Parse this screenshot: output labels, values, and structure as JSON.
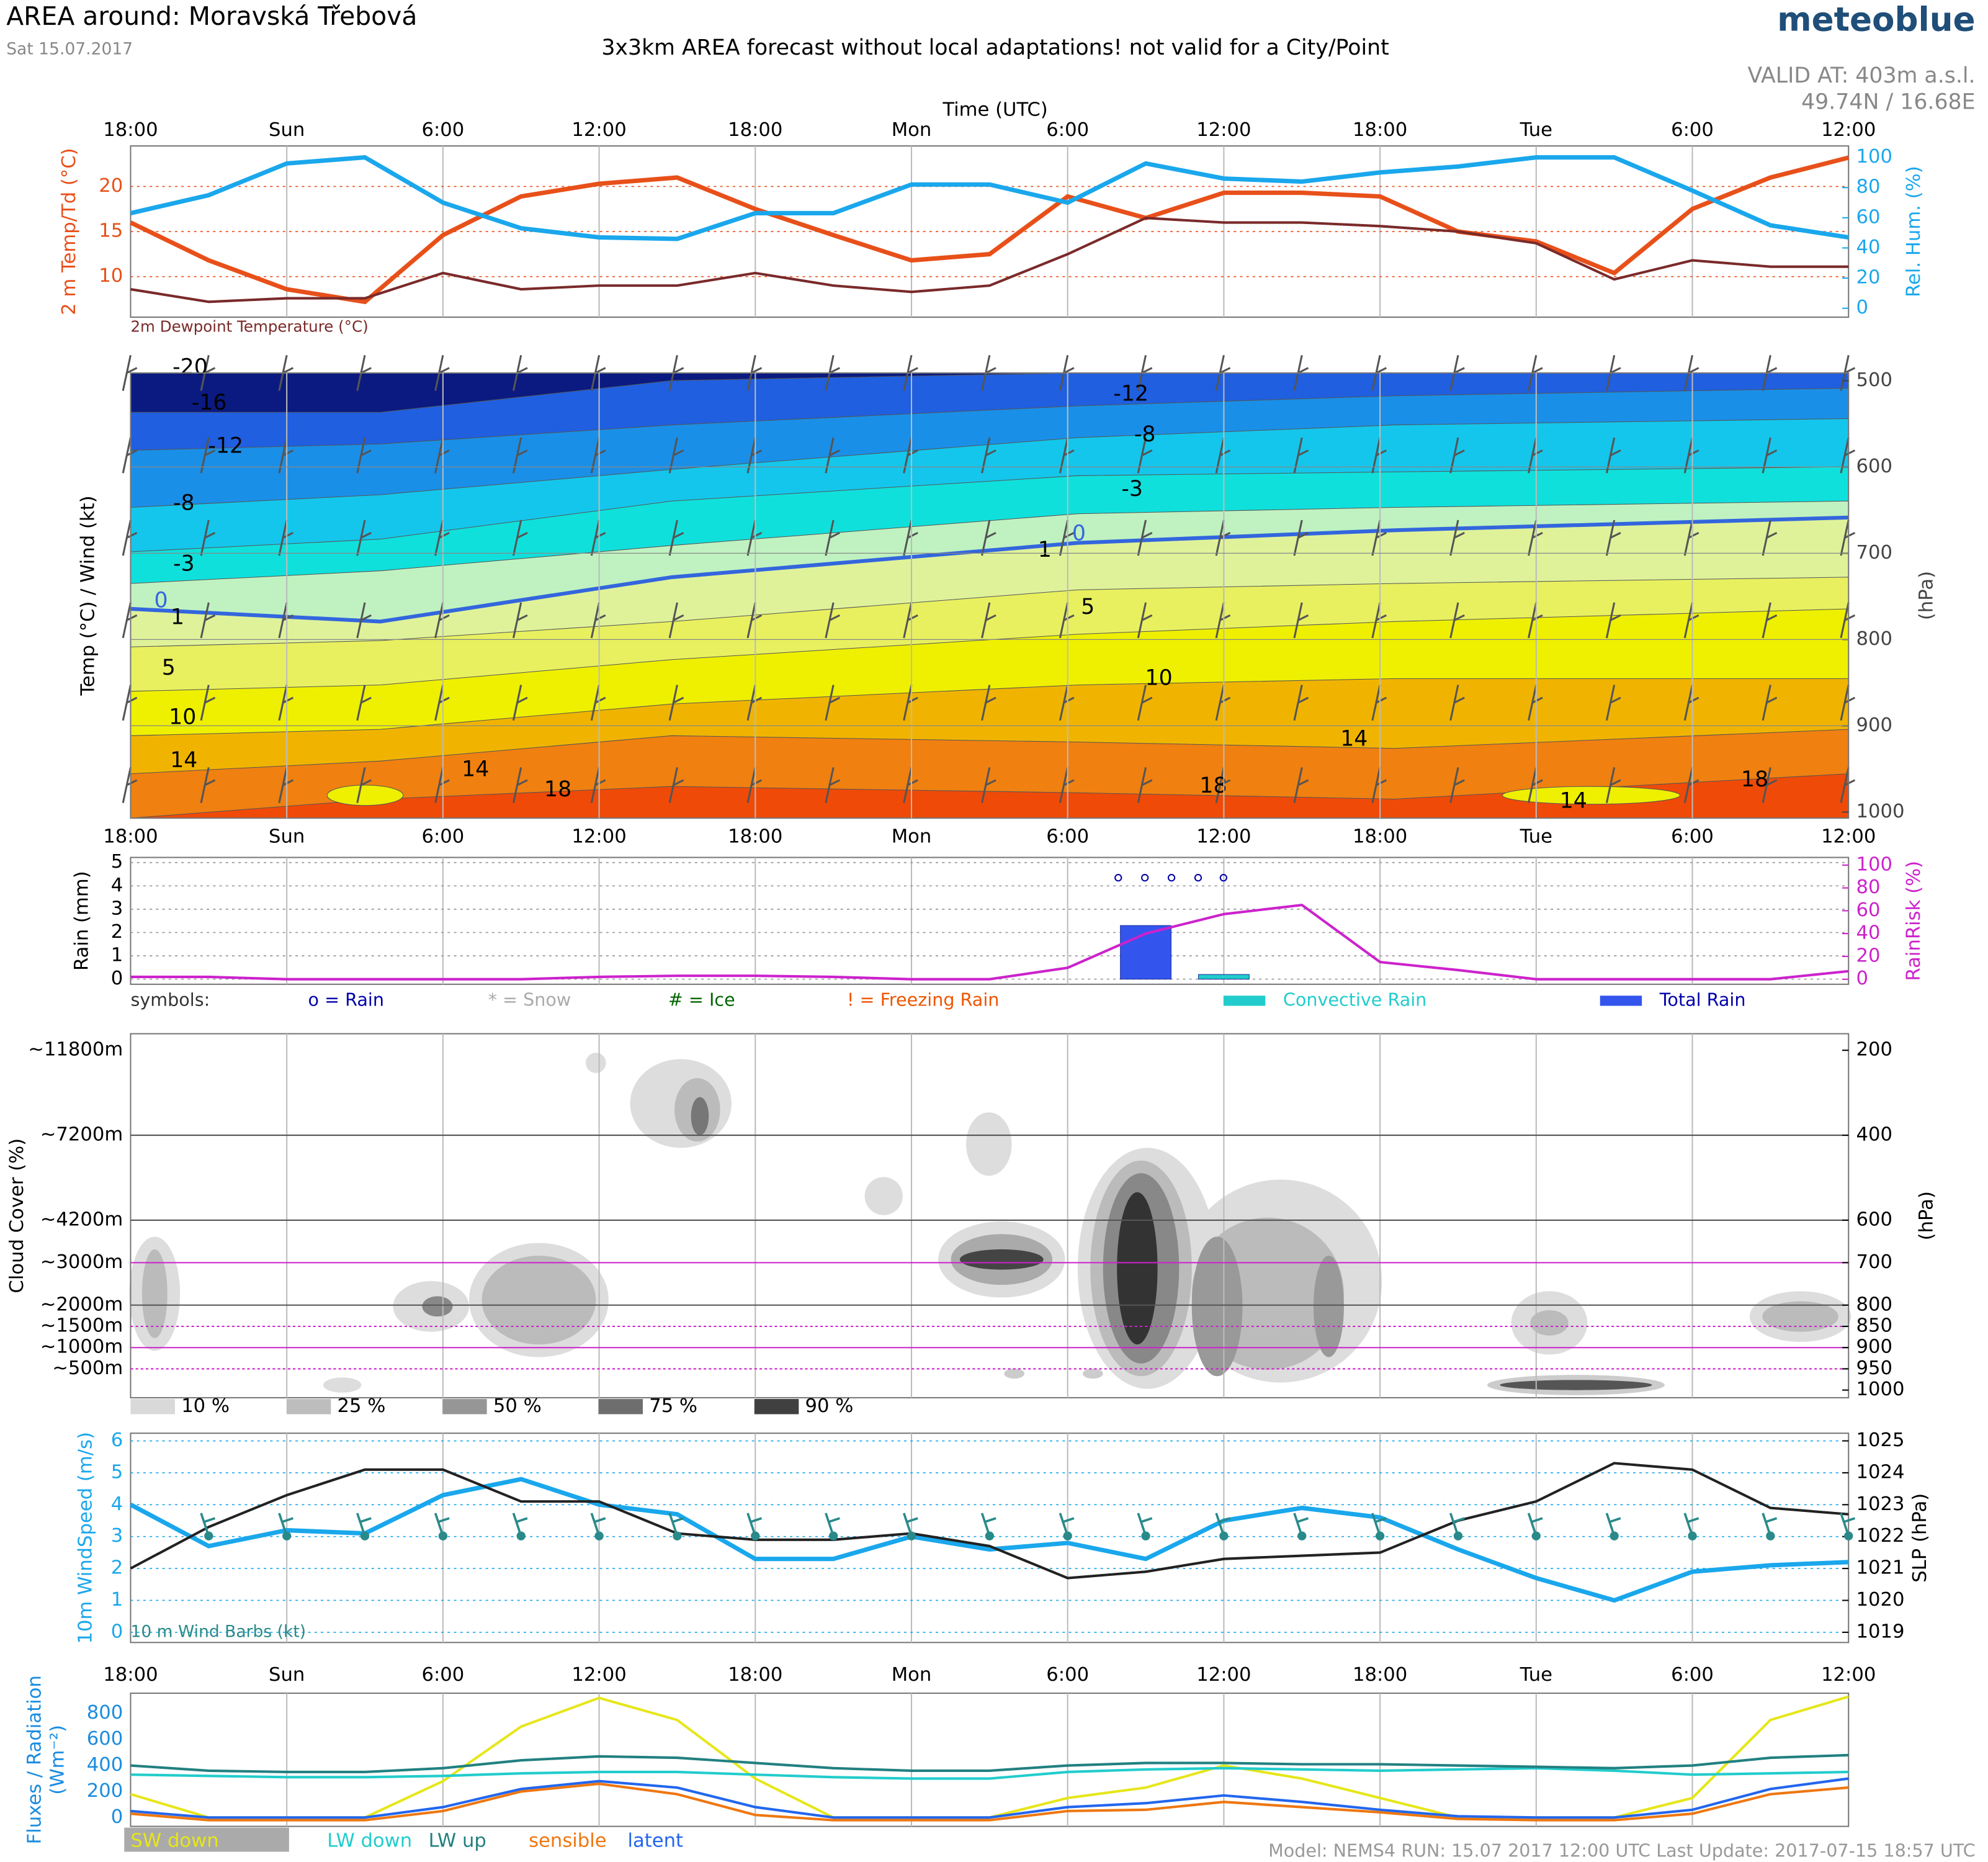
{
  "header": {
    "title": "AREA around: Moravská Třebová",
    "date": "Sat 15.07.2017",
    "subtitle": "3x3km AREA forecast without local adaptations! not valid for a City/Point",
    "brand": "meteoblue",
    "valid_at": "VALID AT: 403m a.s.l.",
    "coords": "49.74N / 16.68E",
    "time_axis": "Time (UTC)"
  },
  "footer": "Model: NEMS4    RUN: 15.07 2017 12:00 UTC    Last Update: 2017-07-15 18:57 UTC",
  "chart_data": [
    {
      "type": "line",
      "ylabel": "2 m Temp/Td (°C)",
      "y2label": "Rel. Hum. (%)",
      "categories": [
        "18:00",
        null,
        "Sun",
        null,
        "6:00",
        null,
        "12:00",
        null,
        "18:00",
        null,
        "Mon",
        null,
        "6:00",
        null,
        "12:00",
        null,
        "18:00",
        null,
        "Tue",
        null,
        "6:00",
        null,
        "12:00"
      ],
      "ylim": [
        5.5,
        24.5
      ],
      "yticks": [
        10,
        15,
        20
      ],
      "y2lim": [
        -5.9,
        107.6
      ],
      "y2ticks": [
        0,
        20,
        40,
        60,
        80,
        100
      ],
      "grid": true,
      "series": [
        {
          "color": "#e8501a",
          "values": [
            16,
            11.8,
            8.6,
            7.2,
            14.6,
            18.9,
            20.3,
            21,
            17.5,
            14.6,
            11.8,
            12.5,
            18.9,
            16.5,
            19.3,
            19.3,
            18.9,
            15,
            13.9,
            10.4,
            17.5,
            21,
            23.2
          ]
        },
        {
          "name": "2m Dewpoint Temperature (°C)",
          "color": "#7a2a2a",
          "values": [
            8.6,
            7.2,
            7.6,
            7.6,
            10.4,
            8.6,
            9,
            9,
            10.4,
            9,
            8.3,
            9,
            12.5,
            16.5,
            16,
            16,
            15.6,
            15,
            13.7,
            9.7,
            11.8,
            11.1,
            11.1
          ]
        },
        {
          "color": "#1aa7ec",
          "axis": "y2",
          "values": [
            63,
            75,
            96,
            100,
            70,
            53,
            47,
            46,
            63,
            63,
            82,
            82,
            70,
            96,
            86,
            84,
            90,
            94,
            100,
            100,
            78,
            55,
            47
          ]
        }
      ]
    },
    {
      "type": "contour",
      "ylabel": "Temp (°C) / Wind (kt)",
      "y2label": "(hPa)",
      "ylim": [
        1007,
        491
      ],
      "y2ticks": [
        500,
        600,
        700,
        800,
        900,
        1000
      ],
      "contour_labels": [
        -20,
        -16,
        -12,
        -8,
        -3,
        0,
        1,
        5,
        10,
        14,
        14,
        18,
        -12,
        -8,
        -3,
        0,
        1,
        5,
        10,
        14,
        18,
        14,
        18
      ]
    },
    {
      "type": "bar",
      "ylabel": "Rain (mm)",
      "y2label": "RainRisk (%)",
      "categories": [
        "18:00",
        null,
        "Sun",
        null,
        "6:00",
        null,
        "12:00",
        null,
        "18:00",
        null,
        "Mon",
        null,
        "6:00",
        null,
        "12:00",
        null,
        "18:00",
        null,
        "Tue",
        null,
        "6:00",
        null,
        "12:00"
      ],
      "ylim": [
        -0.22,
        5.22
      ],
      "yticks": [
        0,
        1,
        2,
        3,
        4,
        5
      ],
      "y2lim": [
        -4.4,
        106.7
      ],
      "y2ticks": [
        0,
        20,
        40,
        60,
        80,
        100
      ],
      "grid": true,
      "symbols": [
        "symbols:",
        "o = Rain",
        "* = Snow",
        "# = Ice",
        "! = Freezing Rain"
      ],
      "series": [
        {
          "name": "Convective Rain",
          "color": "#22cccc",
          "values": [
            0,
            0,
            0,
            0,
            0,
            0,
            0,
            0,
            0,
            0,
            0,
            0,
            0,
            0,
            0.2,
            0,
            0,
            0,
            0,
            0,
            0,
            0,
            0
          ]
        },
        {
          "name": "Total Rain",
          "color": "#3355ee",
          "values": [
            0,
            0,
            0,
            0,
            0,
            0,
            0,
            0,
            0,
            0,
            0,
            0,
            0,
            2.3,
            0,
            0,
            0,
            0,
            0,
            0,
            0,
            0,
            0
          ]
        },
        {
          "type": "line",
          "color": "#cc22cc",
          "axis": "y2",
          "values": [
            2,
            2,
            0,
            0,
            0,
            0,
            2,
            3,
            3,
            2,
            0,
            0,
            10,
            40,
            57,
            65,
            15,
            8,
            0,
            0,
            0,
            0,
            7
          ]
        }
      ]
    },
    {
      "type": "cloud",
      "ylabel": "Cloud Cover (%)",
      "y2label": "(hPa)",
      "ylim": [
        1018,
        161
      ],
      "yticks": [
        {
          "value": 200,
          "label": "~11800m"
        },
        {
          "value": 400,
          "label": "~7200m"
        },
        {
          "value": 600,
          "label": "~4200m"
        },
        {
          "value": 700,
          "label": "~3000m"
        },
        {
          "value": 800,
          "label": "~2000m"
        },
        {
          "value": 850,
          "label": "~1500m"
        },
        {
          "value": 900,
          "label": "~1000m"
        },
        {
          "value": 950,
          "label": "~500m"
        }
      ],
      "y2ticks": [
        200,
        400,
        600,
        700,
        800,
        850,
        900,
        950,
        1000
      ],
      "legend": [
        {
          "label": "10 %",
          "color": "#d9d9d9"
        },
        {
          "label": "25 %",
          "color": "#bdbdbd"
        },
        {
          "label": "50 %",
          "color": "#969696"
        },
        {
          "label": "75 %",
          "color": "#6e6e6e"
        },
        {
          "label": "90 %",
          "color": "#404040"
        }
      ]
    },
    {
      "type": "line",
      "ylabel": "10m WindSpeed (m/s)",
      "y2label": "SLP (hPa)",
      "barbs_label": "10 m Wind Barbs (kt)",
      "ylim": [
        -0.32,
        6.24
      ],
      "yticks": [
        0,
        1,
        2,
        3,
        4,
        5,
        6
      ],
      "y2lim": [
        1018.68,
        1025.24
      ],
      "y2ticks": [
        1019,
        1020,
        1021,
        1022,
        1023,
        1024,
        1025
      ],
      "grid": true,
      "series": [
        {
          "color": "#1aa7ec",
          "values": [
            4.0,
            2.7,
            3.2,
            3.1,
            4.3,
            4.8,
            4.0,
            3.7,
            2.3,
            2.3,
            3.0,
            2.6,
            2.8,
            2.3,
            3.5,
            3.9,
            3.6,
            2.6,
            1.7,
            1.0,
            1.9,
            2.1,
            2.2
          ]
        },
        {
          "color": "#222222",
          "axis": "y2",
          "values": [
            1021.0,
            1022.3,
            1023.3,
            1024.1,
            1024.1,
            1023.1,
            1023.1,
            1022.1,
            1021.9,
            1021.9,
            1022.1,
            1021.7,
            1020.7,
            1020.9,
            1021.3,
            1021.4,
            1021.5,
            1022.5,
            1023.1,
            1024.3,
            1024.1,
            1022.9,
            1022.7
          ]
        }
      ]
    },
    {
      "type": "line",
      "ylabel": "Fluxes / Radiation",
      "yunit": "(Wm⁻²)",
      "categories": [
        "18:00",
        null,
        "Sun",
        null,
        "6:00",
        null,
        "12:00",
        null,
        "18:00",
        null,
        "Mon",
        null,
        "6:00",
        null,
        "12:00",
        null,
        "18:00",
        null,
        "Tue",
        null,
        "6:00",
        null,
        "12:00"
      ],
      "ylim": [
        -68,
        956
      ],
      "yticks": [
        0,
        200,
        400,
        600,
        800
      ],
      "series": [
        {
          "name": "SW down",
          "color": "#e6e61a",
          "values": [
            180,
            0,
            0,
            0,
            280,
            700,
            920,
            750,
            300,
            0,
            0,
            0,
            150,
            230,
            400,
            300,
            150,
            0,
            0,
            0,
            150,
            750,
            930
          ]
        },
        {
          "name": "LW down",
          "color": "#22cccc",
          "values": [
            330,
            320,
            310,
            310,
            320,
            340,
            350,
            350,
            330,
            310,
            300,
            300,
            350,
            370,
            380,
            370,
            360,
            370,
            380,
            360,
            330,
            340,
            350
          ]
        },
        {
          "name": "LW up",
          "color": "#228080",
          "values": [
            400,
            360,
            350,
            350,
            380,
            440,
            470,
            460,
            420,
            380,
            360,
            360,
            400,
            420,
            420,
            410,
            410,
            400,
            390,
            380,
            400,
            460,
            480
          ]
        },
        {
          "name": "sensible",
          "color": "#ee7711",
          "values": [
            30,
            -20,
            -20,
            -20,
            50,
            200,
            260,
            180,
            20,
            -20,
            -20,
            -20,
            50,
            60,
            120,
            80,
            40,
            -10,
            -20,
            -20,
            30,
            180,
            230
          ]
        },
        {
          "name": "latent",
          "color": "#2266ee",
          "values": [
            50,
            0,
            0,
            0,
            80,
            220,
            280,
            230,
            80,
            0,
            0,
            0,
            80,
            110,
            170,
            120,
            60,
            10,
            0,
            0,
            60,
            220,
            300
          ]
        }
      ]
    }
  ]
}
